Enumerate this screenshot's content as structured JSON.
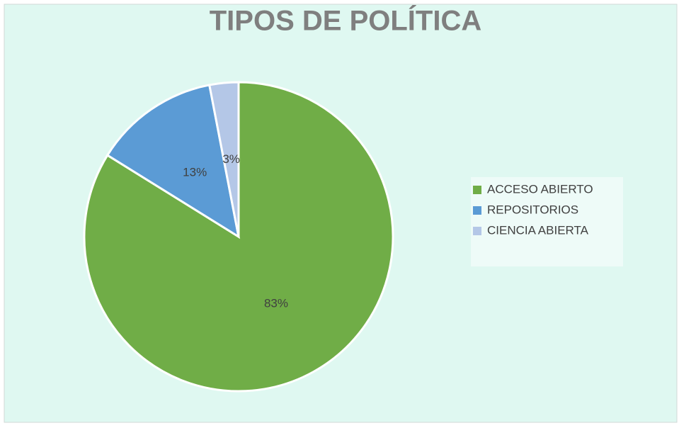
{
  "chart_data": {
    "type": "pie",
    "title": "TIPOS DE POLÍTICA",
    "categories": [
      "ACCESO ABIERTO",
      "REPOSITORIOS",
      "CIENCIA ABIERTA"
    ],
    "values": [
      83,
      13,
      3
    ],
    "value_labels": [
      "83%",
      "13%",
      "3%"
    ],
    "colors": [
      "#70ad47",
      "#5b9bd5",
      "#b4c7e7"
    ],
    "legend": "right"
  }
}
